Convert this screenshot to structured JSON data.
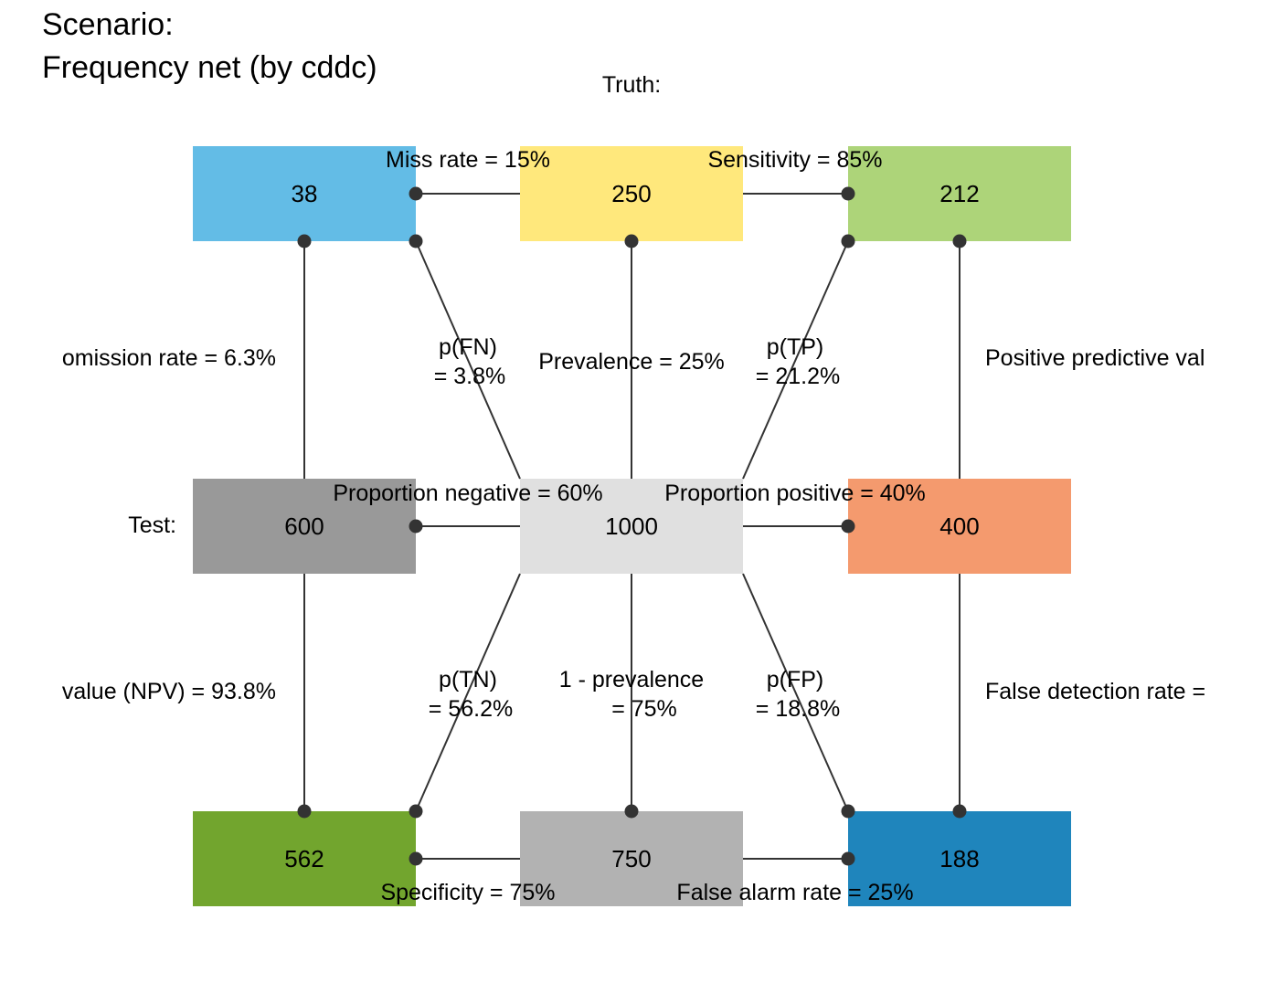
{
  "title": {
    "line1": "Scenario:",
    "line2": "Frequency net (by cddc)"
  },
  "headers": {
    "truth": "Truth:",
    "test": "Test:"
  },
  "boxes": {
    "fn": {
      "value": "38",
      "color": "#63BCE6"
    },
    "cond_true": {
      "value": "250",
      "color": "#FFE87C"
    },
    "tp": {
      "value": "212",
      "color": "#ADD479"
    },
    "dec_neg": {
      "value": "600",
      "color": "#999999"
    },
    "total": {
      "value": "1000",
      "color": "#E0E0E0"
    },
    "dec_pos": {
      "value": "400",
      "color": "#F49A6E"
    },
    "tn": {
      "value": "562",
      "color": "#72A52E"
    },
    "cond_false": {
      "value": "750",
      "color": "#B2B2B2"
    },
    "fp": {
      "value": "188",
      "color": "#1F85BC"
    }
  },
  "edge_labels": {
    "miss_rate": "Miss rate = 15%",
    "sensitivity": "Sensitivity = 85%",
    "omission_rate": "omission rate = 6.3%",
    "p_fn_1": "p(FN)",
    "p_fn_2": "= 3.8%",
    "prevalence": "Prevalence = 25%",
    "p_tp_1": "p(TP)",
    "p_tp_2": "= 21.2%",
    "ppv": "Positive predictive val",
    "prop_neg": "Proportion negative = 60%",
    "prop_pos": "Proportion positive = 40%",
    "npv": "value (NPV) = 93.8%",
    "p_tn_1": "p(TN)",
    "p_tn_2": "= 56.2%",
    "one_minus_prev_1": "1 - prevalence",
    "one_minus_prev_2": "= 75%",
    "p_fp_1": "p(FP)",
    "p_fp_2": "= 18.8%",
    "fdr": "False detection rate =",
    "specificity": "Specificity = 75%",
    "false_alarm": "False alarm rate = 25%"
  },
  "colors": {
    "line": "#333333",
    "dot": "#333333"
  }
}
